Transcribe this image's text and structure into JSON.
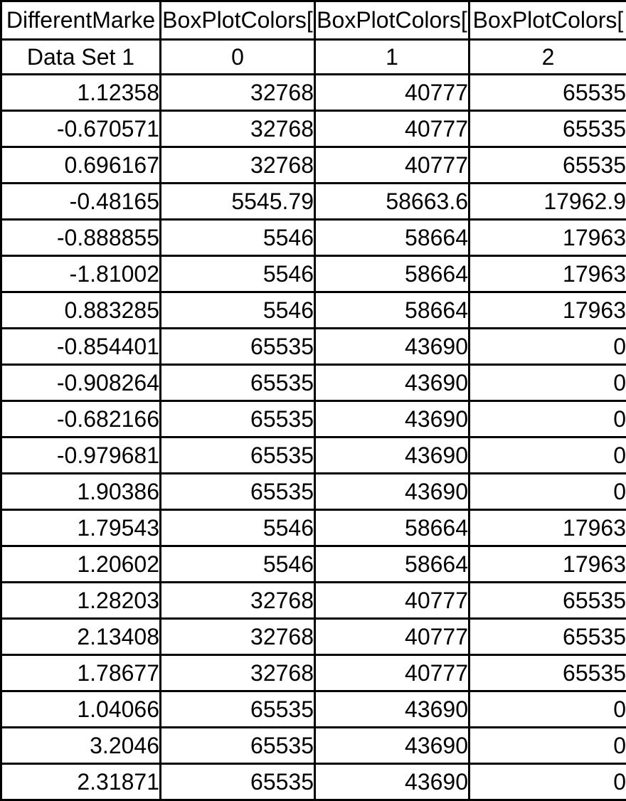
{
  "table": {
    "headers": [
      "DifferentMarke",
      "BoxPlotColors[",
      "BoxPlotColors[",
      "BoxPlotColors["
    ],
    "subheaders": [
      "Data Set 1",
      "0",
      "1",
      "2"
    ],
    "rows": [
      [
        "1.12358",
        "32768",
        "40777",
        "65535"
      ],
      [
        "-0.670571",
        "32768",
        "40777",
        "65535"
      ],
      [
        "0.696167",
        "32768",
        "40777",
        "65535"
      ],
      [
        "-0.48165",
        "5545.79",
        "58663.6",
        "17962.9"
      ],
      [
        "-0.888855",
        "5546",
        "58664",
        "17963"
      ],
      [
        "-1.81002",
        "5546",
        "58664",
        "17963"
      ],
      [
        "0.883285",
        "5546",
        "58664",
        "17963"
      ],
      [
        "-0.854401",
        "65535",
        "43690",
        "0"
      ],
      [
        "-0.908264",
        "65535",
        "43690",
        "0"
      ],
      [
        "-0.682166",
        "65535",
        "43690",
        "0"
      ],
      [
        "-0.979681",
        "65535",
        "43690",
        "0"
      ],
      [
        "1.90386",
        "65535",
        "43690",
        "0"
      ],
      [
        "1.79543",
        "5546",
        "58664",
        "17963"
      ],
      [
        "1.20602",
        "5546",
        "58664",
        "17963"
      ],
      [
        "1.28203",
        "32768",
        "40777",
        "65535"
      ],
      [
        "2.13408",
        "32768",
        "40777",
        "65535"
      ],
      [
        "1.78677",
        "32768",
        "40777",
        "65535"
      ],
      [
        "1.04066",
        "65535",
        "43690",
        "0"
      ],
      [
        "3.2046",
        "65535",
        "43690",
        "0"
      ],
      [
        "2.31871",
        "65535",
        "43690",
        "0"
      ]
    ]
  },
  "colors": {
    "border": "#000000",
    "background": "#ffffff",
    "text": "#000000"
  }
}
